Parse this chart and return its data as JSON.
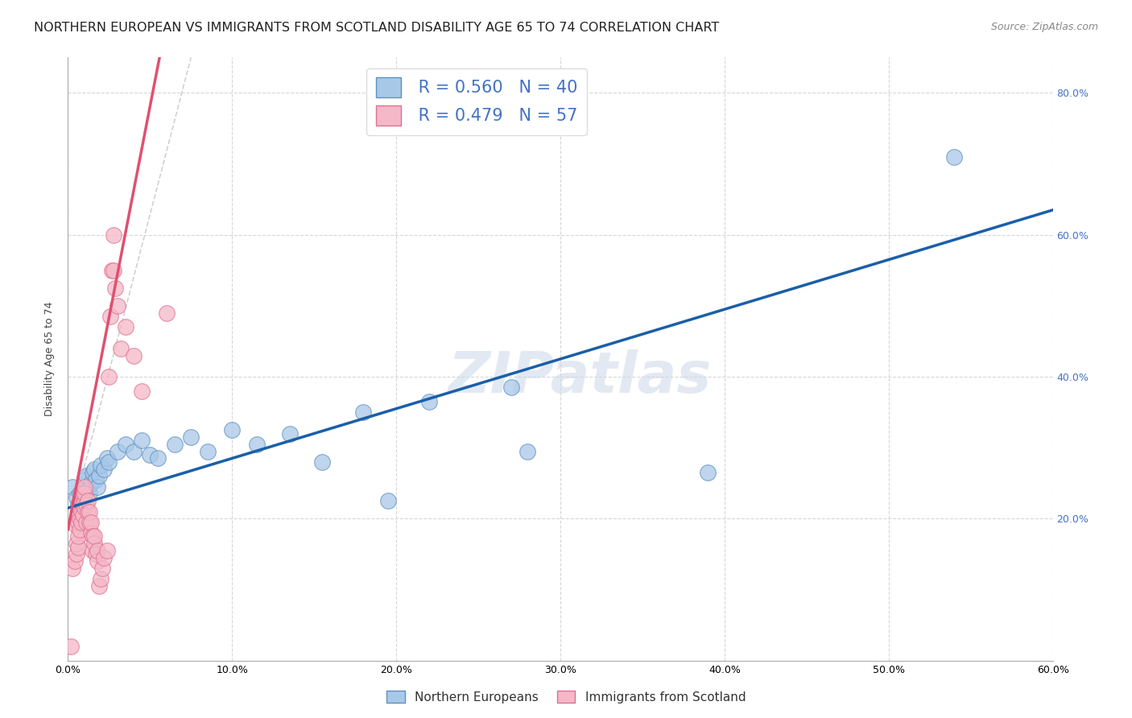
{
  "title": "NORTHERN EUROPEAN VS IMMIGRANTS FROM SCOTLAND DISABILITY AGE 65 TO 74 CORRELATION CHART",
  "source": "Source: ZipAtlas.com",
  "ylabel": "Disability Age 65 to 74",
  "x_min": 0.0,
  "x_max": 0.6,
  "y_min": 0.0,
  "y_max": 0.85,
  "x_ticks": [
    0.0,
    0.1,
    0.2,
    0.3,
    0.4,
    0.5,
    0.6
  ],
  "y_ticks": [
    0.0,
    0.2,
    0.4,
    0.6,
    0.8
  ],
  "y_tick_labels_left": [
    "",
    "",
    "",
    "",
    ""
  ],
  "y_tick_labels_right": [
    "",
    "20.0%",
    "40.0%",
    "60.0%",
    "80.0%"
  ],
  "watermark_text": "ZIPatlas",
  "blue_scatter": [
    [
      0.003,
      0.245
    ],
    [
      0.005,
      0.23
    ],
    [
      0.006,
      0.22
    ],
    [
      0.007,
      0.235
    ],
    [
      0.008,
      0.225
    ],
    [
      0.009,
      0.24
    ],
    [
      0.01,
      0.255
    ],
    [
      0.011,
      0.26
    ],
    [
      0.012,
      0.24
    ],
    [
      0.013,
      0.235
    ],
    [
      0.014,
      0.25
    ],
    [
      0.015,
      0.265
    ],
    [
      0.016,
      0.27
    ],
    [
      0.017,
      0.255
    ],
    [
      0.018,
      0.245
    ],
    [
      0.019,
      0.26
    ],
    [
      0.02,
      0.275
    ],
    [
      0.022,
      0.27
    ],
    [
      0.024,
      0.285
    ],
    [
      0.025,
      0.28
    ],
    [
      0.03,
      0.295
    ],
    [
      0.035,
      0.305
    ],
    [
      0.04,
      0.295
    ],
    [
      0.045,
      0.31
    ],
    [
      0.05,
      0.29
    ],
    [
      0.055,
      0.285
    ],
    [
      0.065,
      0.305
    ],
    [
      0.075,
      0.315
    ],
    [
      0.085,
      0.295
    ],
    [
      0.1,
      0.325
    ],
    [
      0.115,
      0.305
    ],
    [
      0.135,
      0.32
    ],
    [
      0.155,
      0.28
    ],
    [
      0.18,
      0.35
    ],
    [
      0.195,
      0.225
    ],
    [
      0.22,
      0.365
    ],
    [
      0.27,
      0.385
    ],
    [
      0.28,
      0.295
    ],
    [
      0.39,
      0.265
    ],
    [
      0.54,
      0.71
    ]
  ],
  "pink_scatter": [
    [
      0.002,
      0.02
    ],
    [
      0.003,
      0.13
    ],
    [
      0.004,
      0.14
    ],
    [
      0.005,
      0.15
    ],
    [
      0.005,
      0.165
    ],
    [
      0.005,
      0.19
    ],
    [
      0.006,
      0.16
    ],
    [
      0.006,
      0.175
    ],
    [
      0.006,
      0.195
    ],
    [
      0.006,
      0.21
    ],
    [
      0.007,
      0.185
    ],
    [
      0.007,
      0.2
    ],
    [
      0.007,
      0.215
    ],
    [
      0.007,
      0.225
    ],
    [
      0.008,
      0.195
    ],
    [
      0.008,
      0.21
    ],
    [
      0.008,
      0.225
    ],
    [
      0.008,
      0.235
    ],
    [
      0.009,
      0.205
    ],
    [
      0.009,
      0.22
    ],
    [
      0.009,
      0.235
    ],
    [
      0.01,
      0.215
    ],
    [
      0.01,
      0.225
    ],
    [
      0.01,
      0.235
    ],
    [
      0.01,
      0.245
    ],
    [
      0.011,
      0.195
    ],
    [
      0.011,
      0.22
    ],
    [
      0.012,
      0.21
    ],
    [
      0.012,
      0.225
    ],
    [
      0.013,
      0.195
    ],
    [
      0.013,
      0.21
    ],
    [
      0.014,
      0.18
    ],
    [
      0.014,
      0.195
    ],
    [
      0.015,
      0.155
    ],
    [
      0.015,
      0.175
    ],
    [
      0.016,
      0.165
    ],
    [
      0.016,
      0.175
    ],
    [
      0.017,
      0.15
    ],
    [
      0.018,
      0.14
    ],
    [
      0.018,
      0.155
    ],
    [
      0.019,
      0.105
    ],
    [
      0.02,
      0.115
    ],
    [
      0.021,
      0.13
    ],
    [
      0.022,
      0.145
    ],
    [
      0.024,
      0.155
    ],
    [
      0.025,
      0.4
    ],
    [
      0.026,
      0.485
    ],
    [
      0.027,
      0.55
    ],
    [
      0.028,
      0.55
    ],
    [
      0.028,
      0.6
    ],
    [
      0.029,
      0.525
    ],
    [
      0.03,
      0.5
    ],
    [
      0.032,
      0.44
    ],
    [
      0.035,
      0.47
    ],
    [
      0.04,
      0.43
    ],
    [
      0.045,
      0.38
    ],
    [
      0.06,
      0.49
    ]
  ],
  "pink_line_color": "#e05070",
  "blue_line_color": "#1a5fa8",
  "ref_line_color": "#cccccc",
  "background_color": "#ffffff",
  "grid_color": "#cccccc",
  "title_fontsize": 11.5,
  "source_fontsize": 9,
  "axis_label_fontsize": 9,
  "tick_fontsize": 9,
  "legend_patch_blue": "#a8c8e8",
  "legend_patch_pink": "#f4b8c8",
  "legend_edge_blue": "#6090c0",
  "legend_edge_pink": "#e07090",
  "legend_text_color": "#4472c4"
}
